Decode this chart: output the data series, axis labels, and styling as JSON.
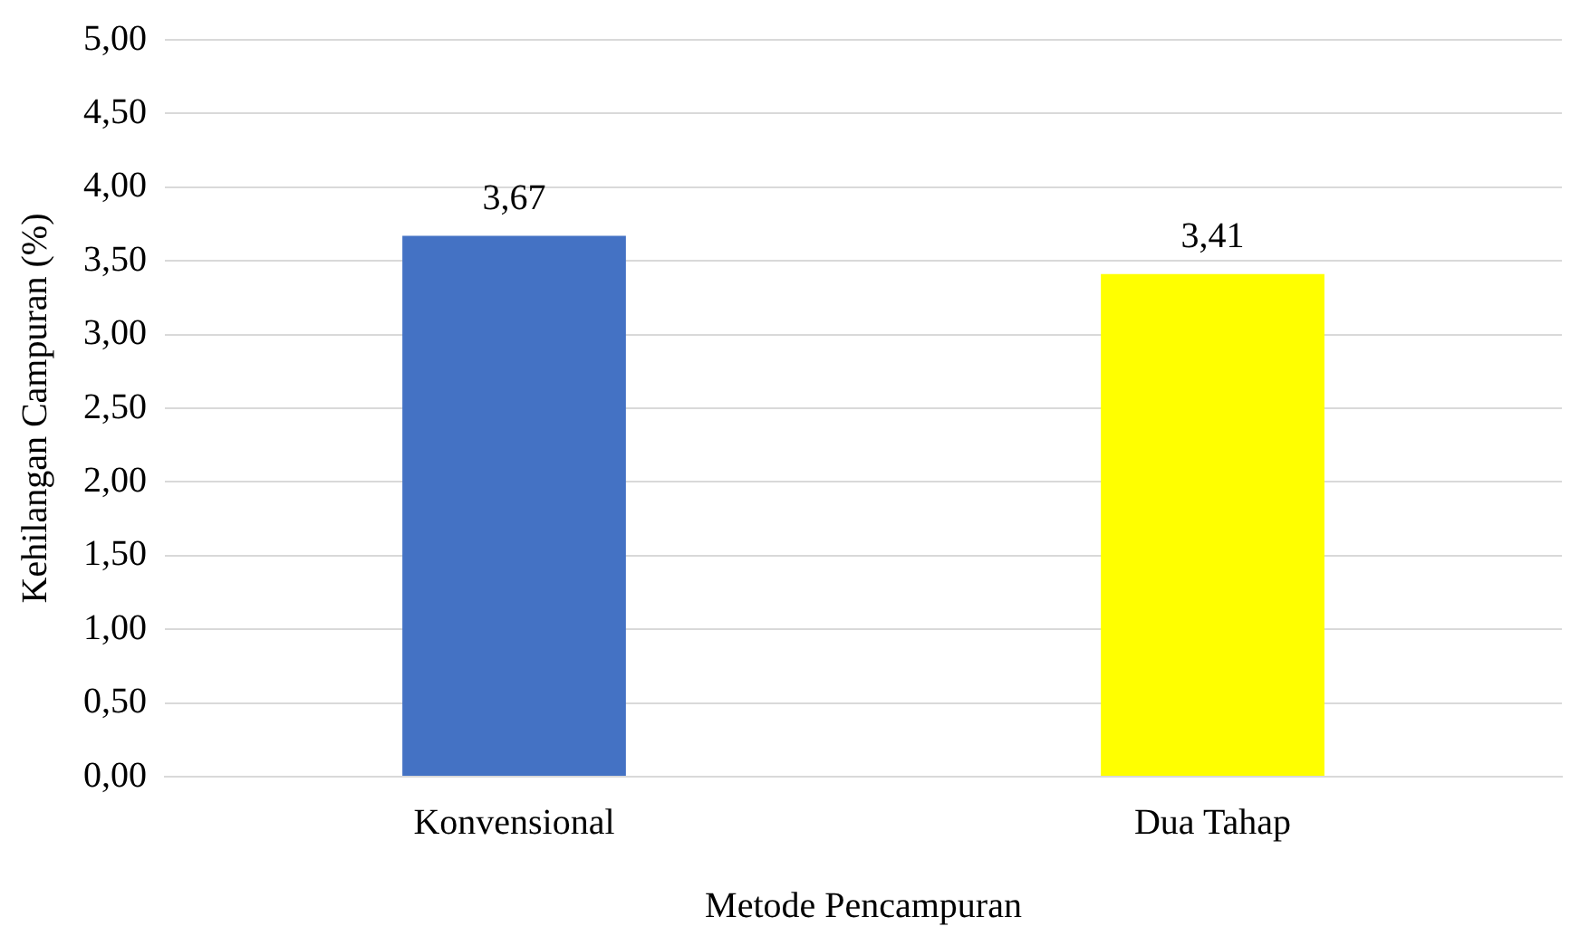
{
  "chart_data": {
    "type": "bar",
    "xlabel": "Metode Pencampuran",
    "ylabel": "Kehilangan Campuran (%)",
    "categories": [
      "Konvensional",
      "Dua Tahap"
    ],
    "values": [
      3.67,
      3.41
    ],
    "colors": [
      "#4472c4",
      "#ffff00"
    ],
    "value_labels": [
      "3,67",
      "3,41"
    ],
    "ylim": [
      0,
      5
    ],
    "yticks": [
      {
        "value": 0,
        "label": "0,00"
      },
      {
        "value": 0.5,
        "label": "0,50"
      },
      {
        "value": 1,
        "label": "1,00"
      },
      {
        "value": 1.5,
        "label": "1,50"
      },
      {
        "value": 2,
        "label": "2,00"
      },
      {
        "value": 2.5,
        "label": "2,50"
      },
      {
        "value": 3,
        "label": "3,00"
      },
      {
        "value": 3.5,
        "label": "3,50"
      },
      {
        "value": 4,
        "label": "4,00"
      },
      {
        "value": 4.5,
        "label": "4,50"
      },
      {
        "value": 5,
        "label": "5,00"
      }
    ],
    "grid": "y",
    "legend": false
  }
}
